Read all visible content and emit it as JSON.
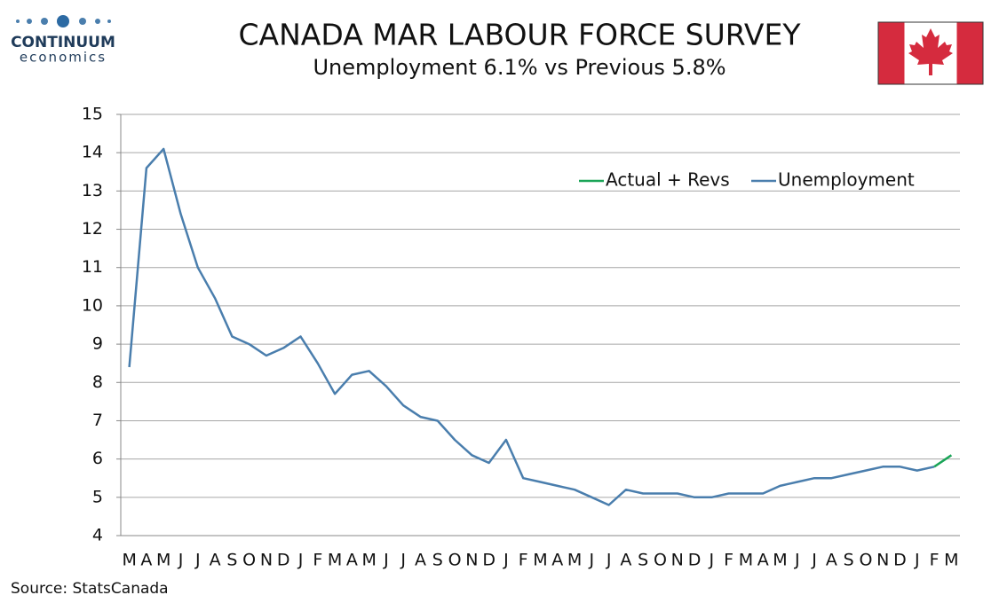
{
  "logo": {
    "name": "CONTINUUM",
    "tagline": "economics"
  },
  "chart_data": {
    "type": "line",
    "title": "CANADA MAR LABOUR FORCE SURVEY",
    "subtitle": "Unemployment  6.1% vs Previous 5.8%",
    "source": "Source: StatsCanada",
    "categories": [
      "M",
      "A",
      "M",
      "J",
      "J",
      "A",
      "S",
      "O",
      "N",
      "D",
      "J",
      "F",
      "M",
      "A",
      "M",
      "J",
      "J",
      "A",
      "S",
      "O",
      "N",
      "D",
      "J",
      "F",
      "M",
      "A",
      "M",
      "J",
      "J",
      "A",
      "S",
      "O",
      "N",
      "D",
      "J",
      "F",
      "M",
      "A",
      "M",
      "J",
      "J",
      "A",
      "S",
      "O",
      "N",
      "D",
      "J",
      "F",
      "M"
    ],
    "series": [
      {
        "name": "Actual + Revs",
        "color": "#1aa457",
        "values": [
          null,
          null,
          null,
          null,
          null,
          null,
          null,
          null,
          null,
          null,
          null,
          null,
          null,
          null,
          null,
          null,
          null,
          null,
          null,
          null,
          null,
          null,
          null,
          null,
          null,
          null,
          null,
          null,
          null,
          null,
          null,
          null,
          null,
          null,
          null,
          null,
          null,
          null,
          null,
          null,
          null,
          null,
          null,
          null,
          null,
          null,
          null,
          5.8,
          6.1
        ]
      },
      {
        "name": "Unemployment",
        "color": "#4a7ead",
        "values": [
          8.4,
          13.6,
          14.1,
          12.4,
          11.0,
          10.2,
          9.2,
          9.0,
          8.7,
          8.9,
          9.2,
          8.5,
          7.7,
          8.2,
          8.3,
          7.9,
          7.4,
          7.1,
          7.0,
          6.5,
          6.1,
          5.9,
          6.5,
          5.5,
          5.4,
          5.3,
          5.2,
          5.0,
          4.8,
          5.2,
          5.1,
          5.1,
          5.1,
          5.0,
          5.0,
          5.1,
          5.1,
          5.1,
          5.3,
          5.4,
          5.5,
          5.5,
          5.6,
          5.7,
          5.8,
          5.8,
          5.7,
          5.8,
          null
        ]
      }
    ],
    "ylim": [
      4,
      15
    ],
    "yticks": [
      4,
      5,
      6,
      7,
      8,
      9,
      10,
      11,
      12,
      13,
      14,
      15
    ],
    "grid": true
  }
}
